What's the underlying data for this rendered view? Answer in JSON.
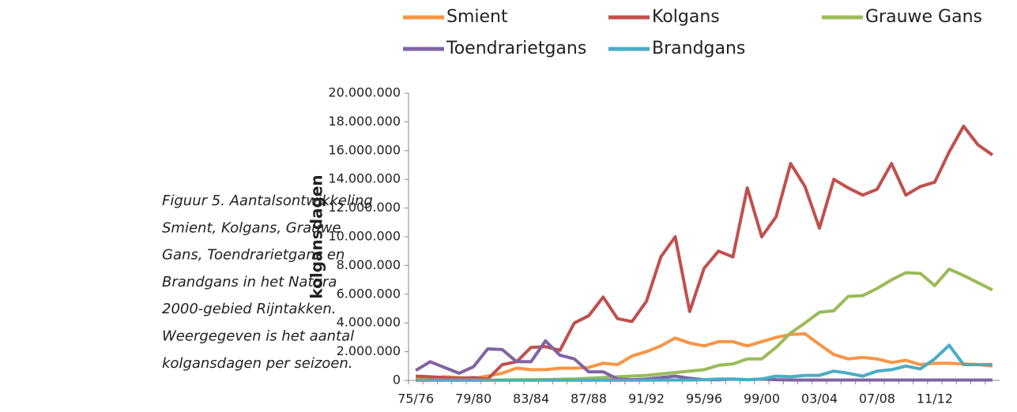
{
  "caption": [
    "Figuur 5. Aantalsontwikkeling",
    "Smient, Kolgans, Grauwe",
    "Gans, Toendrarietgans en",
    "Brandgans in het Natura",
    "2000-gebied Rijntakken.",
    "Weergegeven is het aantal",
    "kolgansdagen per seizoen."
  ],
  "chart_data": {
    "type": "line",
    "y_label": "kolgansdagen",
    "categories": [
      "75/76",
      null,
      null,
      null,
      "79/80",
      null,
      null,
      null,
      "83/84",
      null,
      null,
      null,
      "87/88",
      null,
      null,
      null,
      "91/92",
      null,
      null,
      null,
      "95/96",
      null,
      null,
      null,
      "99/00",
      null,
      null,
      null,
      "03/04",
      null,
      null,
      null,
      "07/08",
      null,
      null,
      null,
      "11/12",
      null,
      null,
      null,
      null
    ],
    "series": [
      {
        "name": "Smient",
        "color": "#f79646",
        "values": [
          200000,
          150000,
          250000,
          200000,
          150000,
          300000,
          500000,
          850000,
          750000,
          750000,
          850000,
          850000,
          900000,
          1200000,
          1100000,
          1700000,
          2000000,
          2400000,
          2950000,
          2600000,
          2400000,
          2700000,
          2700000,
          2400000,
          2700000,
          3000000,
          3200000,
          3250000,
          2500000,
          1800000,
          1500000,
          1600000,
          1500000,
          1250000,
          1400000,
          1100000,
          1200000,
          1200000,
          1150000,
          1100000,
          1000000
        ]
      },
      {
        "name": "Kolgans",
        "color": "#c0504d",
        "values": [
          300000,
          250000,
          200000,
          150000,
          200000,
          100000,
          1100000,
          1300000,
          2300000,
          2350000,
          2100000,
          4000000,
          4500000,
          5800000,
          4300000,
          4100000,
          5500000,
          8600000,
          10000000,
          4800000,
          7800000,
          9000000,
          8600000,
          13400000,
          10000000,
          11400000,
          15100000,
          13500000,
          10600000,
          14000000,
          13400000,
          12900000,
          13300000,
          15100000,
          12900000,
          13500000,
          13800000,
          15900000,
          17700000,
          16400000,
          15700000
        ]
      },
      {
        "name": "Grauwe Gans",
        "color": "#9bbb59",
        "values": [
          20000,
          20000,
          20000,
          20000,
          20000,
          30000,
          30000,
          40000,
          50000,
          60000,
          80000,
          100000,
          150000,
          200000,
          250000,
          300000,
          350000,
          450000,
          550000,
          650000,
          750000,
          1050000,
          1150000,
          1500000,
          1500000,
          2300000,
          3300000,
          4000000,
          4750000,
          4850000,
          5850000,
          5900000,
          6400000,
          7000000,
          7500000,
          7450000,
          6600000,
          7750000,
          7300000,
          6800000,
          6300000
        ]
      },
      {
        "name": "Toendrarietgans",
        "color": "#8064a2",
        "values": [
          700000,
          1300000,
          900000,
          500000,
          950000,
          2200000,
          2150000,
          1300000,
          1300000,
          2750000,
          1750000,
          1500000,
          600000,
          600000,
          100000,
          50000,
          100000,
          200000,
          300000,
          150000,
          50000,
          50000,
          100000,
          50000,
          100000,
          50000,
          30000,
          30000,
          30000,
          30000,
          30000,
          30000,
          30000,
          30000,
          30000,
          30000,
          30000,
          30000,
          30000,
          30000,
          30000
        ]
      },
      {
        "name": "Brandgans",
        "color": "#4bacc6",
        "values": [
          10000,
          10000,
          10000,
          10000,
          10000,
          10000,
          10000,
          10000,
          10000,
          10000,
          10000,
          10000,
          10000,
          10000,
          10000,
          10000,
          20000,
          20000,
          30000,
          30000,
          50000,
          100000,
          100000,
          50000,
          100000,
          300000,
          250000,
          350000,
          350000,
          650000,
          500000,
          300000,
          650000,
          750000,
          1000000,
          800000,
          1500000,
          2450000,
          1100000,
          1100000,
          1100000
        ]
      }
    ],
    "ylim": [
      0,
      20000000
    ],
    "yticks": [
      {
        "value": 0,
        "label": "0"
      },
      {
        "value": 2000000,
        "label": "2.000.000"
      },
      {
        "value": 4000000,
        "label": "4.000.000"
      },
      {
        "value": 6000000,
        "label": "6.000.000"
      },
      {
        "value": 8000000,
        "label": "8.000.000"
      },
      {
        "value": 10000000,
        "label": "10.000.000"
      },
      {
        "value": 12000000,
        "label": "12.000.000"
      },
      {
        "value": 14000000,
        "label": "14.000.000"
      },
      {
        "value": 16000000,
        "label": "16.000.000"
      },
      {
        "value": 18000000,
        "label": "18.000.000"
      },
      {
        "value": 20000000,
        "label": "20.000.000"
      }
    ],
    "grid": false,
    "legend": "top"
  }
}
